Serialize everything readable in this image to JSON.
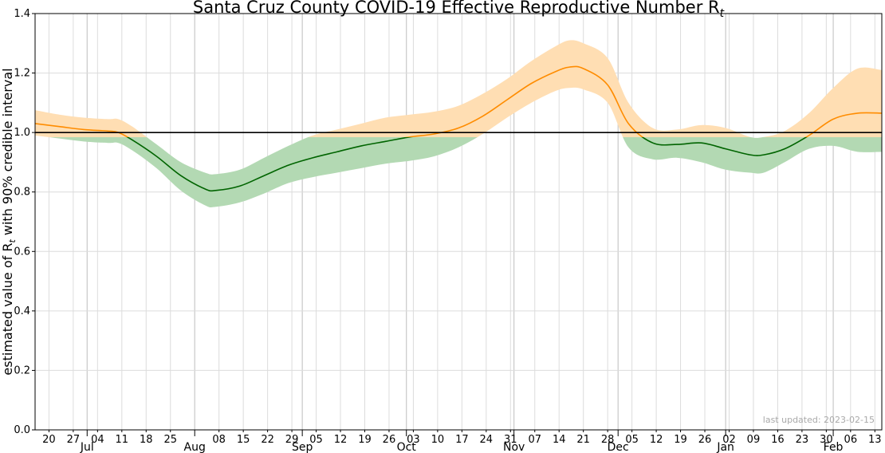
{
  "chart_data": {
    "type": "line",
    "title": "Santa Cruz County COVID-19 Effective Reproductive Number R",
    "title_subscript": "t",
    "ylabel": "estimated value of R",
    "ylabel_subscript": "t",
    "ylabel_suffix": " with 90% credible interval",
    "ylim": [
      0.0,
      1.4
    ],
    "y_ticks": [
      "0.0",
      "0.2",
      "0.4",
      "0.6",
      "0.8",
      "1.0",
      "1.2",
      "1.4"
    ],
    "xlim": [
      "2022-06-16",
      "2023-02-15"
    ],
    "threshold": 1.0,
    "grid": true,
    "colors": {
      "above": "#ff8c00",
      "above_band": "#ffdeb3",
      "below": "#006400",
      "below_band": "#b3d9b3",
      "threshold": "#000000",
      "grid": "#dcdcdc",
      "note": "#a9a9a9"
    },
    "day_ticks": [
      {
        "date": "2022-06-20",
        "label": "20"
      },
      {
        "date": "2022-06-27",
        "label": "27"
      },
      {
        "date": "2022-07-04",
        "label": "04"
      },
      {
        "date": "2022-07-11",
        "label": "11"
      },
      {
        "date": "2022-07-18",
        "label": "18"
      },
      {
        "date": "2022-07-25",
        "label": "25"
      },
      {
        "date": "2022-08-08",
        "label": "08"
      },
      {
        "date": "2022-08-15",
        "label": "15"
      },
      {
        "date": "2022-08-22",
        "label": "22"
      },
      {
        "date": "2022-08-29",
        "label": "29"
      },
      {
        "date": "2022-09-05",
        "label": "05"
      },
      {
        "date": "2022-09-12",
        "label": "12"
      },
      {
        "date": "2022-09-19",
        "label": "19"
      },
      {
        "date": "2022-09-26",
        "label": "26"
      },
      {
        "date": "2022-10-03",
        "label": "03"
      },
      {
        "date": "2022-10-10",
        "label": "10"
      },
      {
        "date": "2022-10-17",
        "label": "17"
      },
      {
        "date": "2022-10-24",
        "label": "24"
      },
      {
        "date": "2022-10-31",
        "label": "31"
      },
      {
        "date": "2022-11-07",
        "label": "07"
      },
      {
        "date": "2022-11-14",
        "label": "14"
      },
      {
        "date": "2022-11-21",
        "label": "21"
      },
      {
        "date": "2022-11-28",
        "label": "28"
      },
      {
        "date": "2022-12-05",
        "label": "05"
      },
      {
        "date": "2022-12-12",
        "label": "12"
      },
      {
        "date": "2022-12-19",
        "label": "19"
      },
      {
        "date": "2022-12-26",
        "label": "26"
      },
      {
        "date": "2023-01-02",
        "label": "02"
      },
      {
        "date": "2023-01-09",
        "label": "09"
      },
      {
        "date": "2023-01-16",
        "label": "16"
      },
      {
        "date": "2023-01-23",
        "label": "23"
      },
      {
        "date": "2023-01-30",
        "label": "30"
      },
      {
        "date": "2023-02-06",
        "label": "06"
      },
      {
        "date": "2023-02-13",
        "label": "13"
      }
    ],
    "month_ticks": [
      {
        "date": "2022-07-01",
        "label": "Jul"
      },
      {
        "date": "2022-08-01",
        "label": "Aug"
      },
      {
        "date": "2022-09-01",
        "label": "Sep"
      },
      {
        "date": "2022-10-01",
        "label": "Oct"
      },
      {
        "date": "2022-11-01",
        "label": "Nov"
      },
      {
        "date": "2022-12-01",
        "label": "Dec"
      },
      {
        "date": "2023-01-01",
        "label": "Jan"
      },
      {
        "date": "2023-02-01",
        "label": "Feb"
      }
    ],
    "series": [
      {
        "dates": [
          "2022-06-16",
          "2022-06-23",
          "2022-06-30",
          "2022-07-07",
          "2022-07-10",
          "2022-07-14",
          "2022-07-21",
          "2022-07-28",
          "2022-08-04",
          "2022-08-07",
          "2022-08-14",
          "2022-08-21",
          "2022-08-28",
          "2022-09-04",
          "2022-09-11",
          "2022-09-18",
          "2022-09-25",
          "2022-10-02",
          "2022-10-09",
          "2022-10-16",
          "2022-10-23",
          "2022-10-30",
          "2022-11-06",
          "2022-11-13",
          "2022-11-17",
          "2022-11-21",
          "2022-11-28",
          "2022-12-04",
          "2022-12-11",
          "2022-12-18",
          "2022-12-25",
          "2023-01-01",
          "2023-01-08",
          "2023-01-12",
          "2023-01-18",
          "2023-01-25",
          "2023-02-01",
          "2023-02-08",
          "2023-02-15"
        ],
        "r": [
          1.03,
          1.02,
          1.01,
          1.005,
          1.0,
          0.975,
          0.92,
          0.855,
          0.81,
          0.805,
          0.82,
          0.855,
          0.89,
          0.915,
          0.935,
          0.955,
          0.97,
          0.985,
          0.995,
          1.015,
          1.055,
          1.11,
          1.165,
          1.205,
          1.22,
          1.215,
          1.16,
          1.03,
          0.965,
          0.96,
          0.965,
          0.945,
          0.925,
          0.925,
          0.945,
          0.99,
          1.045,
          1.065,
          1.065
        ],
        "lower": [
          0.99,
          0.98,
          0.97,
          0.965,
          0.965,
          0.94,
          0.88,
          0.805,
          0.755,
          0.75,
          0.765,
          0.795,
          0.83,
          0.85,
          0.865,
          0.88,
          0.895,
          0.905,
          0.92,
          0.95,
          0.995,
          1.05,
          1.1,
          1.14,
          1.15,
          1.145,
          1.1,
          0.95,
          0.91,
          0.915,
          0.9,
          0.875,
          0.865,
          0.865,
          0.9,
          0.945,
          0.955,
          0.935,
          0.935
        ],
        "upper": [
          1.075,
          1.06,
          1.05,
          1.045,
          1.045,
          1.02,
          0.96,
          0.9,
          0.865,
          0.86,
          0.875,
          0.915,
          0.955,
          0.99,
          1.01,
          1.03,
          1.05,
          1.06,
          1.07,
          1.09,
          1.13,
          1.18,
          1.24,
          1.29,
          1.31,
          1.3,
          1.25,
          1.1,
          1.015,
          1.01,
          1.025,
          1.015,
          0.985,
          0.985,
          1.005,
          1.065,
          1.15,
          1.215,
          1.21
        ]
      }
    ]
  },
  "footer": {
    "note": "last updated: 2023-02-15"
  }
}
